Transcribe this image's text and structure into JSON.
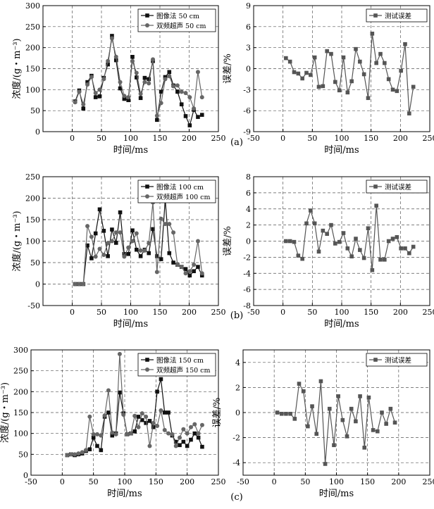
{
  "chart_data": [
    {
      "type": "line",
      "panel_label": "(a)",
      "xlabel": "时间/ms",
      "ylabel": "浓度/(g・m⁻³)",
      "xlim": [
        -50,
        250
      ],
      "ylim": [
        0,
        300
      ],
      "xticks": [
        0,
        50,
        100,
        150,
        200,
        250
      ],
      "yticks": [
        0,
        50,
        100,
        150,
        200,
        250,
        300
      ],
      "grid": true,
      "legend_position": "top-right",
      "series": [
        {
          "name": "图像法    50 cm",
          "marker": "square",
          "color": "#111111",
          "x": [
            5,
            12,
            19,
            26,
            33,
            40,
            47,
            54,
            61,
            68,
            75,
            82,
            89,
            96,
            103,
            110,
            117,
            124,
            131,
            138,
            145,
            152,
            159,
            166,
            173,
            180,
            187,
            194,
            201,
            208,
            215,
            222
          ],
          "y": [
            72,
            98,
            55,
            118,
            133,
            82,
            84,
            128,
            160,
            228,
            170,
            103,
            78,
            75,
            178,
            129,
            80,
            128,
            125,
            168,
            28,
            95,
            130,
            142,
            110,
            95,
            65,
            37,
            15,
            52,
            35,
            40
          ]
        },
        {
          "name": "双频超声    50 cm",
          "marker": "circle",
          "color": "#666666",
          "x": [
            5,
            12,
            19,
            26,
            33,
            40,
            47,
            54,
            61,
            68,
            75,
            82,
            89,
            96,
            103,
            110,
            117,
            124,
            131,
            138,
            145,
            152,
            159,
            166,
            173,
            180,
            187,
            194,
            201,
            208,
            215,
            222
          ],
          "y": [
            70,
            95,
            65,
            112,
            130,
            92,
            100,
            125,
            168,
            222,
            178,
            118,
            85,
            82,
            168,
            140,
            90,
            118,
            115,
            172,
            38,
            68,
            125,
            132,
            108,
            110,
            95,
            92,
            82,
            55,
            142,
            82
          ]
        }
      ]
    },
    {
      "type": "line",
      "panel_label": "(a)",
      "xlabel": "时间/ms",
      "ylabel": "误差/%",
      "xlim": [
        -50,
        250
      ],
      "ylim": [
        -9,
        9
      ],
      "xticks": [
        -50,
        0,
        50,
        100,
        150,
        200,
        250
      ],
      "yticks": [
        -9,
        -6,
        -3,
        0,
        3,
        6,
        9
      ],
      "grid": true,
      "legend_position": "top-right",
      "series": [
        {
          "name": "测试误差",
          "marker": "square",
          "color": "#555555",
          "x": [
            5,
            12,
            19,
            26,
            33,
            40,
            47,
            54,
            61,
            68,
            75,
            82,
            89,
            96,
            103,
            110,
            117,
            124,
            131,
            138,
            145,
            152,
            159,
            166,
            173,
            180,
            187,
            194,
            201,
            208,
            215,
            222
          ],
          "y": [
            1.5,
            1.0,
            -0.5,
            -0.7,
            -1.4,
            -0.6,
            -0.9,
            1.6,
            -2.6,
            -2.5,
            2.5,
            2.1,
            -1.9,
            -3.1,
            1.6,
            -3.4,
            -1.8,
            2.8,
            1.0,
            -0.8,
            -4.2,
            5.0,
            0.8,
            2.1,
            0.8,
            -1.5,
            -3.0,
            -3.2,
            -0.3,
            3.5,
            -6.4,
            -2.6
          ]
        }
      ]
    },
    {
      "type": "line",
      "panel_label": "(b)",
      "xlabel": "时间/ms",
      "ylabel": "浓度/(g・m⁻³)",
      "xlim": [
        -50,
        250
      ],
      "ylim": [
        -50,
        250
      ],
      "xticks": [
        0,
        50,
        100,
        150,
        200,
        250
      ],
      "yticks": [
        -50,
        0,
        50,
        100,
        150,
        200,
        250
      ],
      "grid": true,
      "legend_position": "top-right",
      "series": [
        {
          "name": "图像法    100 cm",
          "marker": "square",
          "color": "#111111",
          "x": [
            5,
            12,
            19,
            26,
            33,
            40,
            47,
            54,
            61,
            68,
            75,
            82,
            89,
            96,
            103,
            110,
            117,
            124,
            131,
            138,
            145,
            152,
            159,
            166,
            173,
            180,
            187,
            194,
            201,
            208,
            215,
            222
          ],
          "y": [
            0,
            0,
            0,
            90,
            60,
            118,
            174,
            124,
            65,
            127,
            96,
            167,
            70,
            70,
            125,
            80,
            65,
            80,
            72,
            128,
            65,
            58,
            197,
            72,
            50,
            45,
            40,
            35,
            20,
            30,
            40,
            20
          ]
        },
        {
          "name": "双频超声    100 cm",
          "marker": "circle",
          "color": "#666666",
          "x": [
            5,
            12,
            19,
            26,
            33,
            40,
            47,
            54,
            61,
            68,
            75,
            82,
            89,
            96,
            103,
            110,
            117,
            124,
            131,
            138,
            145,
            152,
            159,
            166,
            173,
            180,
            187,
            194,
            201,
            208,
            215,
            222
          ],
          "y": [
            0,
            0,
            0,
            135,
            110,
            64,
            82,
            68,
            95,
            100,
            120,
            120,
            64,
            85,
            100,
            118,
            78,
            78,
            95,
            190,
            28,
            152,
            140,
            140,
            120,
            45,
            40,
            25,
            30,
            45,
            100,
            25
          ]
        }
      ]
    },
    {
      "type": "line",
      "panel_label": "(b)",
      "xlabel": "时间/ms",
      "ylabel": "误差/%",
      "xlim": [
        -50,
        250
      ],
      "ylim": [
        -8,
        8
      ],
      "xticks": [
        -50,
        0,
        50,
        100,
        150,
        200,
        250
      ],
      "yticks": [
        -8,
        -6,
        -4,
        -2,
        0,
        2,
        4,
        6,
        8
      ],
      "grid": true,
      "legend_position": "top-right",
      "series": [
        {
          "name": "测试误差",
          "marker": "square",
          "color": "#555555",
          "x": [
            5,
            12,
            19,
            26,
            33,
            40,
            47,
            54,
            61,
            68,
            75,
            82,
            89,
            96,
            103,
            110,
            117,
            124,
            131,
            138,
            145,
            152,
            159,
            166,
            173,
            180,
            187,
            194,
            201,
            208,
            215,
            222
          ],
          "y": [
            0,
            0,
            -0.1,
            -1.8,
            -2.2,
            2.2,
            3.8,
            2.2,
            -1.3,
            1.3,
            0.9,
            2.0,
            -0.3,
            -0.1,
            1.0,
            -0.9,
            -1.9,
            0.3,
            -1.1,
            -2.1,
            1.6,
            -3.6,
            4.4,
            -2.3,
            -2.3,
            0.0,
            0.3,
            0.5,
            -0.9,
            -0.9,
            -1.5,
            -0.7
          ]
        }
      ]
    },
    {
      "type": "line",
      "panel_label": "(c)",
      "xlabel": "时间/ms",
      "ylabel": "浓度/(g・m⁻³)",
      "xlim": [
        -50,
        250
      ],
      "ylim": [
        0,
        300
      ],
      "xticks": [
        -50,
        0,
        50,
        100,
        150,
        200,
        250
      ],
      "yticks": [
        0,
        50,
        100,
        150,
        200,
        250,
        300
      ],
      "grid": true,
      "legend_position": "top-right",
      "series": [
        {
          "name": "图像法    150 cm",
          "marker": "square",
          "color": "#111111",
          "x": [
            8,
            14,
            20,
            26,
            32,
            38,
            44,
            50,
            56,
            62,
            68,
            74,
            80,
            86,
            92,
            98,
            104,
            110,
            116,
            122,
            128,
            134,
            140,
            146,
            152,
            158,
            164,
            170,
            176,
            182,
            188,
            194,
            200,
            206,
            212,
            218,
            224
          ],
          "y": [
            48,
            50,
            48,
            50,
            52,
            58,
            62,
            90,
            70,
            60,
            140,
            150,
            95,
            100,
            198,
            148,
            98,
            100,
            105,
            140,
            132,
            125,
            130,
            115,
            200,
            230,
            150,
            150,
            95,
            80,
            72,
            80,
            70,
            85,
            100,
            90,
            68
          ]
        },
        {
          "name": "双频超声    150 cm",
          "marker": "circle",
          "color": "#666666",
          "x": [
            8,
            14,
            20,
            26,
            32,
            38,
            44,
            50,
            56,
            62,
            68,
            74,
            80,
            86,
            92,
            98,
            104,
            110,
            116,
            122,
            128,
            134,
            140,
            146,
            152,
            158,
            164,
            170,
            176,
            182,
            188,
            194,
            200,
            206,
            212,
            218,
            224
          ],
          "y": [
            48,
            50,
            50,
            52,
            55,
            60,
            140,
            98,
            98,
            95,
            143,
            203,
            102,
            98,
            290,
            145,
            98,
            100,
            142,
            115,
            148,
            140,
            70,
            125,
            118,
            155,
            108,
            100,
            98,
            70,
            90,
            110,
            100,
            115,
            122,
            100,
            120
          ]
        }
      ]
    },
    {
      "type": "line",
      "panel_label": "(c)",
      "xlabel": "时间/ms",
      "ylabel": "误差/%",
      "xlim": [
        -50,
        250
      ],
      "ylim": [
        -5,
        5
      ],
      "xticks": [
        -50,
        0,
        50,
        100,
        150,
        200,
        250
      ],
      "yticks": [
        -4,
        -2,
        0,
        2,
        4
      ],
      "grid": true,
      "legend_position": "top-right",
      "series": [
        {
          "name": "测试误差",
          "marker": "square",
          "color": "#555555",
          "x": [
            5,
            12,
            19,
            26,
            33,
            40,
            47,
            54,
            61,
            68,
            75,
            82,
            89,
            96,
            103,
            110,
            117,
            124,
            131,
            138,
            145,
            152,
            159,
            166,
            173,
            180,
            187,
            194
          ],
          "y": [
            0,
            -0.1,
            -0.1,
            -0.1,
            -0.5,
            2.3,
            1.7,
            -1.1,
            0.5,
            -1.7,
            2.5,
            -4.1,
            0.3,
            -2.6,
            1.3,
            -0.6,
            -1.9,
            0.3,
            -0.7,
            1.3,
            -2.8,
            1.2,
            -1.4,
            -1.5,
            0.0,
            -0.9,
            0.3,
            -0.8
          ]
        }
      ]
    }
  ]
}
